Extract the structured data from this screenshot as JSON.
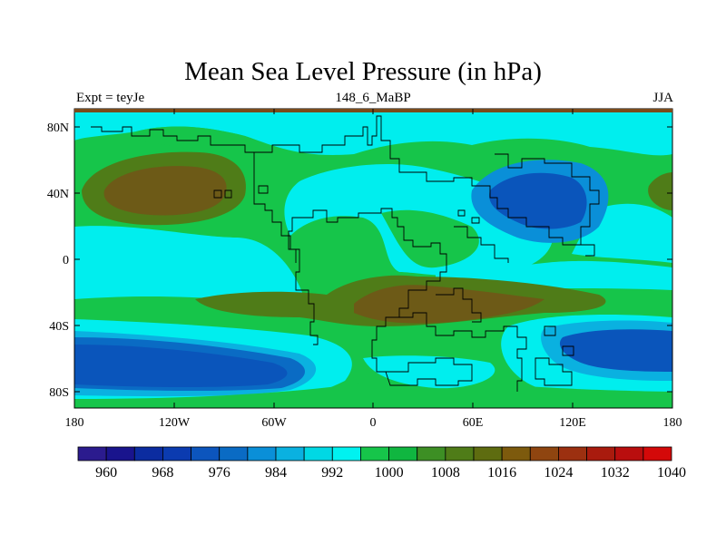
{
  "title": "Mean Sea Level Pressure (in hPa)",
  "subtitle_left": "Expt = teyJe",
  "subtitle_center": "148_6_MaBP",
  "subtitle_right": "JJA",
  "map": {
    "lat_ticks": [
      "80N",
      "40N",
      "0",
      "40S",
      "80S"
    ],
    "lon_ticks": [
      "180",
      "120W",
      "60W",
      "0",
      "60E",
      "120E",
      "180"
    ]
  },
  "colorbar": {
    "colors": [
      "#2b1b8e",
      "#19148d",
      "#0b2ca0",
      "#0b3bb0",
      "#0c55bd",
      "#0a6bc4",
      "#0a8fd8",
      "#0ab1e0",
      "#00d8e4",
      "#00f2f0",
      "#16c54a",
      "#10b640",
      "#3d8f24",
      "#4f7c18",
      "#5e6c10",
      "#7d5a0d",
      "#8f4510",
      "#9c3010",
      "#a91b0e",
      "#b90e0e",
      "#d40909"
    ],
    "labels": [
      "960",
      "968",
      "976",
      "984",
      "992",
      "1000",
      "1008",
      "1016",
      "1024",
      "1032",
      "1040"
    ]
  },
  "legend_colors": {
    "cyan": "#00eeee",
    "green": "#16c54a",
    "olive": "#4f7c18",
    "brown": "#6d5a17",
    "blue": "#0a8fd8",
    "deep_blue": "#0a55bb",
    "ocean": "#00b0e0"
  }
}
